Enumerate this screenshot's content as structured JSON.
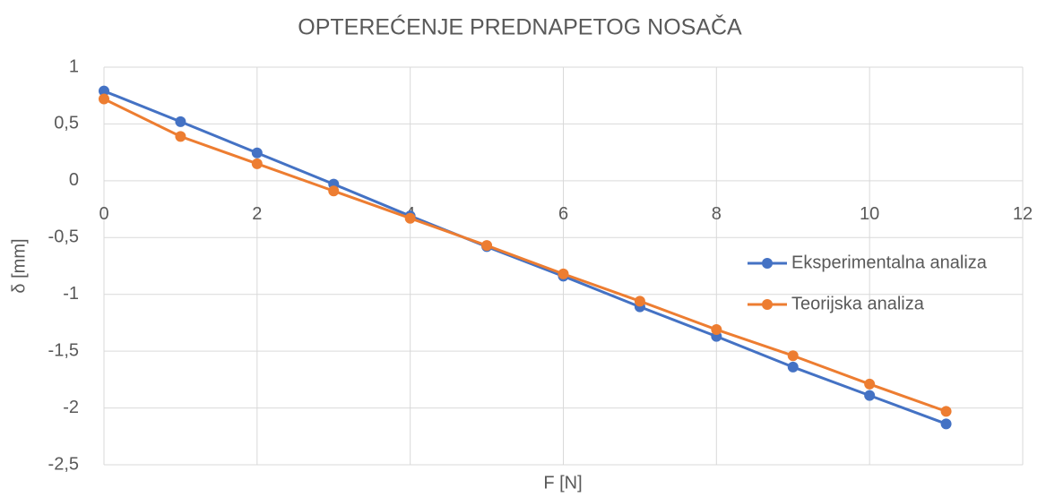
{
  "chart_data": {
    "type": "line",
    "title": "OPTEREĆENJE PREDNAPETOG NOSAČA",
    "x_label": "F [N]",
    "y_label": "δ  [mm]",
    "x": [
      0,
      1,
      2,
      3,
      4,
      5,
      6,
      7,
      8,
      9,
      10,
      11
    ],
    "series": [
      {
        "name": "Eksperimentalna analiza",
        "color": "#4472c4",
        "values": [
          0.79,
          0.52,
          0.245,
          -0.03,
          -0.31,
          -0.58,
          -0.84,
          -1.11,
          -1.37,
          -1.64,
          -1.89,
          -2.14
        ]
      },
      {
        "name": "Teorijska analiza",
        "color": "#ed7d31",
        "values": [
          0.72,
          0.39,
          0.15,
          -0.09,
          -0.33,
          -0.57,
          -0.82,
          -1.06,
          -1.31,
          -1.54,
          -1.79,
          -2.03
        ]
      }
    ],
    "xlim": [
      0,
      12
    ],
    "xticks": [
      0,
      2,
      4,
      6,
      8,
      10,
      12
    ],
    "ylim": [
      -2.5,
      1
    ],
    "yticks": [
      1,
      {
        "value": 0.5,
        "label": "0,5"
      },
      0,
      {
        "value": -0.5,
        "label": "-0,5"
      },
      -1,
      {
        "value": -1.5,
        "label": "-1,5"
      },
      -2,
      {
        "value": -2.5,
        "label": "-2,5"
      }
    ],
    "grid": true,
    "legend": "right"
  }
}
